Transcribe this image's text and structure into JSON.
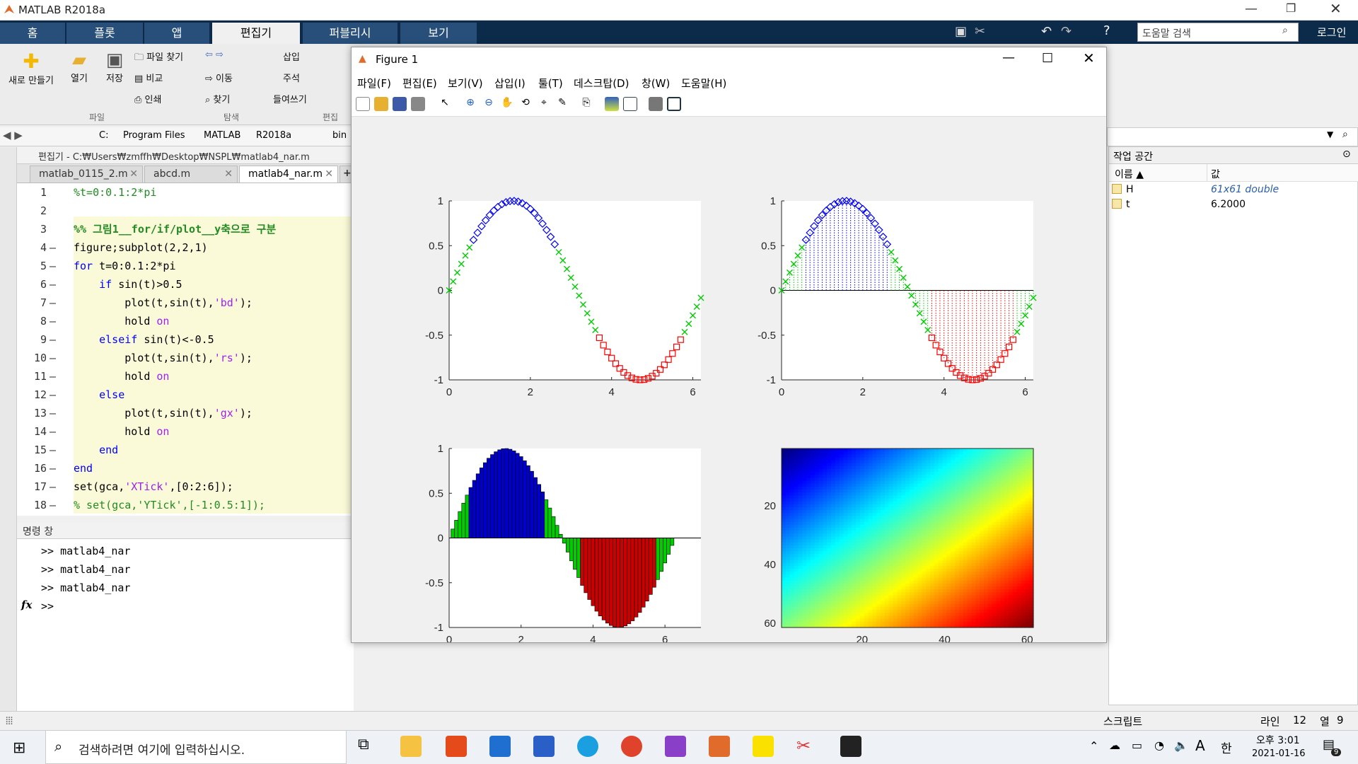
{
  "app_title": "MATLAB R2018a",
  "ribbon_tabs": [
    "홈",
    "플롯",
    "앱",
    "편집기",
    "퍼블리시",
    "보기"
  ],
  "help_search_placeholder": "도움말 검색",
  "login_label": "로그인",
  "ribbon": {
    "new": "새로 만들기",
    "open": "열기",
    "save": "저장",
    "find_files": "파일 찾기",
    "compare": "비교",
    "print": "인쇄",
    "go_to": "이동",
    "find": "찾기",
    "insert": "삽입",
    "comment": "주석",
    "indent": "들여쓰기",
    "group_file": "파일",
    "group_navigate": "탐색",
    "group_edit": "편집"
  },
  "address_bar": [
    "C:",
    "Program Files",
    "MATLAB",
    "R2018a",
    "bin"
  ],
  "editor_title": "편집기 - C:₩Users₩zmffh₩Desktop₩NSPL₩matlab4_nar.m",
  "editor_tabs": [
    "matlab_0115_2.m",
    "abcd.m",
    "matlab4_nar.m"
  ],
  "code_lines": [
    {
      "n": "1",
      "text": "%t=0:0.1:2*pi"
    },
    {
      "n": "2",
      "text": ""
    },
    {
      "n": "3",
      "text": "%% 그림1__for/if/plot__y축으로 구분"
    },
    {
      "n": "4",
      "text": "figure;subplot(2,2,1)"
    },
    {
      "n": "5",
      "text": "for t=0:0.1:2*pi"
    },
    {
      "n": "6",
      "text": "    if sin(t)>0.5"
    },
    {
      "n": "7",
      "text": "        plot(t,sin(t),'bd');"
    },
    {
      "n": "8",
      "text": "        hold on"
    },
    {
      "n": "9",
      "text": "    elseif sin(t)<-0.5"
    },
    {
      "n": "10",
      "text": "        plot(t,sin(t),'rs');"
    },
    {
      "n": "11",
      "text": "        hold on"
    },
    {
      "n": "12",
      "text": "    else"
    },
    {
      "n": "13",
      "text": "        plot(t,sin(t),'gx');"
    },
    {
      "n": "14",
      "text": "        hold on"
    },
    {
      "n": "15",
      "text": "    end"
    },
    {
      "n": "16",
      "text": "end"
    },
    {
      "n": "17",
      "text": "set(gca,'XTick',[0:2:6]);"
    },
    {
      "n": "18",
      "text": "% set(gca,'YTick',[-1:0.5:1]);"
    }
  ],
  "command_window": {
    "title": "명령 창",
    "history": [
      ">> matlab4_nar",
      ">> matlab4_nar",
      ">> matlab4_nar"
    ],
    "prompt": ">>",
    "fx": "fx"
  },
  "workspace": {
    "title": "작업 공간",
    "col_name": "이름 ▲",
    "col_value": "값",
    "vars": [
      {
        "name": "H",
        "value": "61x61 double"
      },
      {
        "name": "t",
        "value": "6.2000"
      }
    ]
  },
  "status_bar": {
    "mode": "스크립트",
    "line_label": "라인",
    "line": "12",
    "col_label": "열",
    "col": "9"
  },
  "figure": {
    "title": "Figure 1",
    "menu": [
      "파일(F)",
      "편집(E)",
      "보기(V)",
      "삽입(I)",
      "툴(T)",
      "데스크탑(D)",
      "창(W)",
      "도움말(H)"
    ]
  },
  "taskbar": {
    "search_placeholder": "검색하려면 여기에 입력하십시오.",
    "time": "오후 3:01",
    "date": "2021-01-16",
    "ime": "한",
    "font_indicator": "A",
    "notif_count": "9"
  },
  "chart_data": [
    {
      "type": "scatter",
      "x": [
        0,
        0.1,
        0.2,
        0.3,
        0.4,
        0.5,
        0.6,
        0.7,
        0.8,
        0.9,
        1.0,
        1.1,
        1.2,
        1.3,
        1.4,
        1.5,
        1.6,
        1.7,
        1.8,
        1.9,
        2.0,
        2.1,
        2.2,
        2.3,
        2.4,
        2.5,
        2.6,
        2.7,
        2.8,
        2.9,
        3.0,
        3.1,
        3.2,
        3.3,
        3.4,
        3.5,
        3.6,
        3.7,
        3.8,
        3.9,
        4.0,
        4.1,
        4.2,
        4.3,
        4.4,
        4.5,
        4.6,
        4.7,
        4.8,
        4.9,
        5.0,
        5.1,
        5.2,
        5.3,
        5.4,
        5.5,
        5.6,
        5.7,
        5.8,
        5.9,
        6.0,
        6.1,
        6.2
      ],
      "y_function": "sin(x)",
      "series": [
        {
          "name": "bd",
          "condition": "sin(t)>0.5",
          "marker": "diamond",
          "color": "#0000ff"
        },
        {
          "name": "rs",
          "condition": "sin(t)<-0.5",
          "marker": "square",
          "color": "#ff0000"
        },
        {
          "name": "gx",
          "condition": "else",
          "marker": "x",
          "color": "#00cc00"
        }
      ],
      "xlim": [
        0,
        6.2
      ],
      "ylim": [
        -1,
        1
      ],
      "xticks": [
        "0",
        "2",
        "4",
        "6"
      ],
      "yticks": [
        "1",
        "0.5",
        "0",
        "-0.5",
        "-1"
      ]
    },
    {
      "type": "scatter",
      "style": "stem",
      "x_range": [
        0,
        6.2,
        0.1
      ],
      "y_function": "sin(x)",
      "colors": {
        "high": "#0000ff",
        "low": "#ff0000",
        "mid": "#00cc00"
      },
      "xlim": [
        0,
        6.2
      ],
      "ylim": [
        -1,
        1
      ],
      "xticks": [
        "0",
        "2",
        "4",
        "6"
      ],
      "yticks": [
        "1",
        "0.5",
        "0",
        "-0.5",
        "-1"
      ]
    },
    {
      "type": "bar",
      "x_range": [
        0,
        6.2,
        0.1
      ],
      "y_function": "sin(x)",
      "colors": {
        "high": "#0000cc",
        "low": "#cc0000",
        "mid": "#00cc00"
      },
      "xlim": [
        0,
        7
      ],
      "ylim": [
        -1,
        1
      ],
      "xticks": [
        "0",
        "2",
        "4",
        "6"
      ],
      "yticks": [
        "1",
        "0.5",
        "0",
        "-0.5",
        "-1"
      ]
    },
    {
      "type": "heatmap",
      "size": [
        61,
        61
      ],
      "colormap": "jet",
      "xticks": [
        "20",
        "40",
        "60"
      ],
      "yticks": [
        "20",
        "40",
        "60"
      ]
    }
  ]
}
